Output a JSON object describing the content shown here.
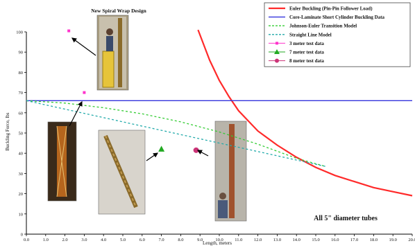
{
  "chart_data": {
    "type": "line",
    "title": "",
    "xlabel": "Length, meters",
    "ylabel": "Buckling Force, lbs",
    "xlim": [
      0,
      20
    ],
    "ylim": [
      0,
      100
    ],
    "x_ticks": [
      "0.0",
      "1.0",
      "2.0",
      "3.0",
      "4.0",
      "5.0",
      "6.0",
      "7.0",
      "8.0",
      "9.0",
      "10.0",
      "11.0",
      "12.0",
      "13.0",
      "14.0",
      "15.0",
      "16.0",
      "17.0",
      "18.0",
      "19.0",
      "20.0"
    ],
    "y_ticks": [
      "0",
      "10",
      "20",
      "30",
      "40",
      "50",
      "60",
      "70",
      "80",
      "90",
      "100"
    ],
    "grid": false,
    "legend_position": "top-right",
    "series": [
      {
        "name": "Euler Buckling (Pin-Pin Follower Load)",
        "style": "solid",
        "color": "#ff2a2a",
        "x": [
          8.9,
          9.5,
          10.0,
          10.5,
          11.0,
          11.5,
          12.0,
          13.0,
          14.0,
          15.0,
          16.0,
          17.0,
          18.0,
          19.0,
          20.0
        ],
        "y": [
          101,
          86,
          76,
          68,
          61,
          56,
          51,
          44,
          38,
          33,
          29,
          26,
          23,
          21,
          19
        ]
      },
      {
        "name": "Core-Laminate Short Cylinder Buckling Data",
        "style": "solid",
        "color": "#3333dd",
        "x": [
          0,
          20
        ],
        "y": [
          66,
          66
        ]
      },
      {
        "name": "Johnson-Euler Transition Model",
        "style": "dashed",
        "color": "#33cc33",
        "x": [
          0,
          2,
          4,
          6,
          8,
          10,
          12,
          14,
          15.5
        ],
        "y": [
          66,
          64.8,
          62.5,
          59.5,
          55.5,
          50.5,
          44.5,
          37.5,
          33.5
        ]
      },
      {
        "name": "Straight Line Model",
        "style": "dashed",
        "color": "#22aaaa",
        "x": [
          0,
          15.5
        ],
        "y": [
          66,
          33.5
        ]
      },
      {
        "name": "3 meter test data",
        "marker": "square",
        "color": "#ff33cc",
        "x": [
          2.2,
          3.0
        ],
        "y": [
          100.5,
          70
        ]
      },
      {
        "name": "7 meter test data",
        "marker": "triangle",
        "color": "#22aa22",
        "x": [
          7.0
        ],
        "y": [
          42
        ]
      },
      {
        "name": "8 meter test data",
        "marker": "circle",
        "color": "#cc3377",
        "x": [
          8.8
        ],
        "y": [
          41.5
        ]
      }
    ],
    "annotations": {
      "photo_title": "New Spiral Wrap Design",
      "note": "All 5\" diameter tubes"
    }
  }
}
